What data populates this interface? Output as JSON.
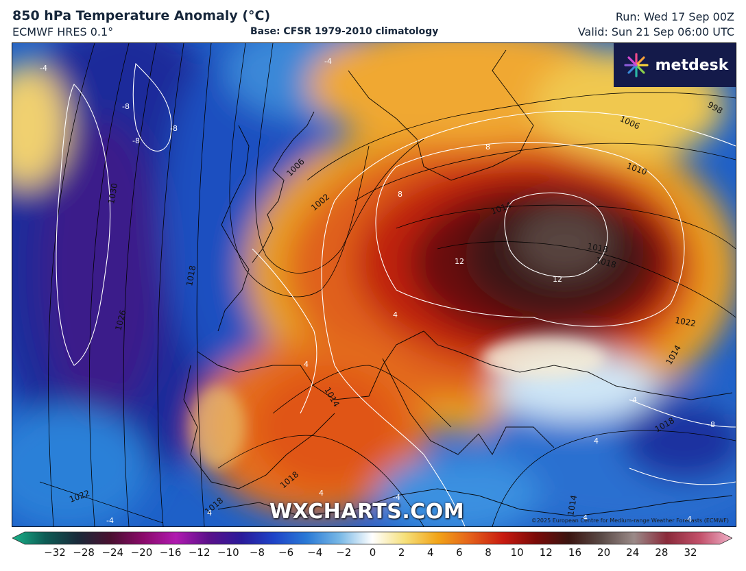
{
  "header": {
    "title": "850 hPa Temperature Anomaly (°C)",
    "model": "ECMWF HRES 0.1°",
    "base": "Base: CFSR 1979-2010 climatology",
    "run": "Run: Wed 17 Sep 00Z",
    "valid": "Valid: Sun 21 Sep 06:00 UTC"
  },
  "brand": {
    "logo_text": "metdesk",
    "watermark": "WXCHARTS.COM",
    "copyright": "©2025 European Centre for Medium-range Weather Forecasts (ECMWF)"
  },
  "map": {
    "isobar_labels": [
      "998",
      "1006",
      "1006",
      "1010",
      "1014",
      "1018",
      "1022",
      "1002",
      "1030",
      "1018",
      "1026",
      "1014",
      "1018",
      "1022",
      "1018",
      "1014",
      "1018",
      "1018",
      "1014"
    ],
    "anomaly_labels": [
      "-4",
      "-4",
      "-8",
      "-8",
      "-8",
      "8",
      "8",
      "12",
      "12",
      "4",
      "4",
      "4",
      "-4",
      "-4",
      "4",
      "-8",
      "4",
      "-4",
      "4",
      "-4"
    ]
  },
  "legend": {
    "ticks": [
      "−32",
      "−28",
      "−24",
      "−20",
      "−16",
      "−12",
      "−10",
      "−8",
      "−6",
      "−4",
      "−2",
      "0",
      "2",
      "4",
      "6",
      "8",
      "10",
      "12",
      "16",
      "20",
      "24",
      "28",
      "32"
    ],
    "colors": [
      "#1ab38a",
      "#0d5c55",
      "#1a2a3a",
      "#4a1030",
      "#8a0a6a",
      "#b01ab0",
      "#5a108a",
      "#2a1a9a",
      "#1e44c8",
      "#2a7ad6",
      "#78b8e6",
      "#ffffff",
      "#f6e07a",
      "#f2a418",
      "#e4601a",
      "#c81a10",
      "#7a0a08",
      "#3a1410",
      "#5a4a46",
      "#9a8a88",
      "#8a2a3a",
      "#c2506a",
      "#f0b0c8"
    ]
  }
}
